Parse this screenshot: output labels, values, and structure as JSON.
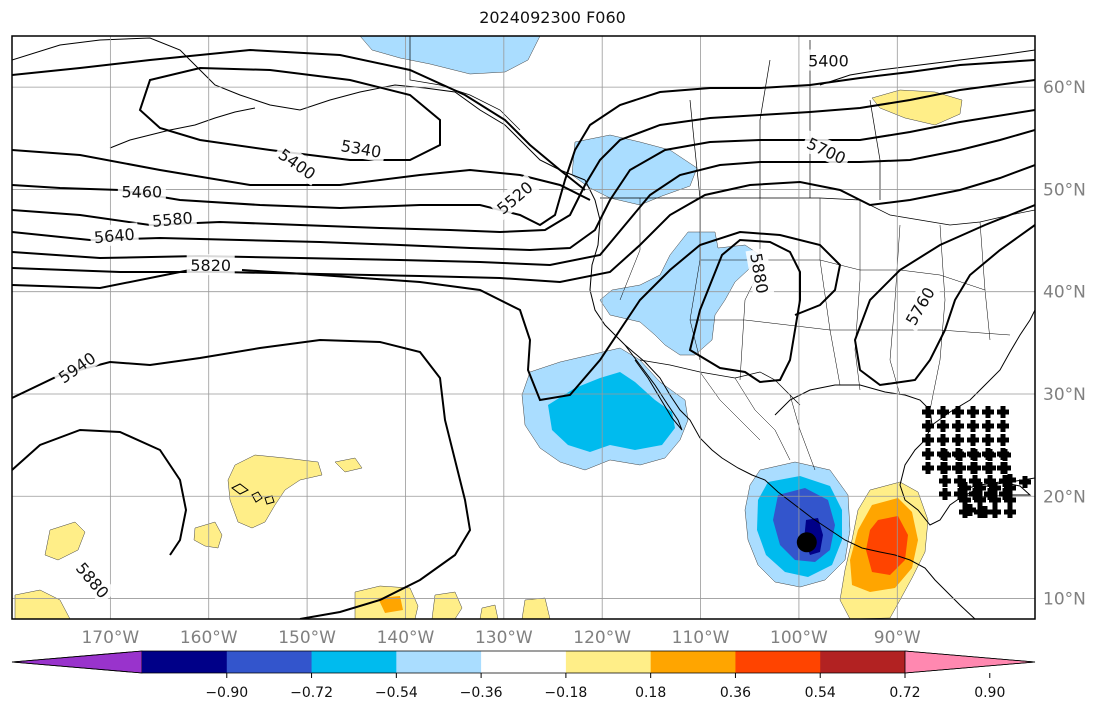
{
  "title": "2024092300 F060",
  "map": {
    "extent": {
      "lon_min": -180,
      "lon_max": -76,
      "lat_min": 8,
      "lat_max": 65
    },
    "gridlines": true
  },
  "axes": {
    "lon_ticks": [
      {
        "value": -170,
        "label": "170°W"
      },
      {
        "value": -160,
        "label": "160°W"
      },
      {
        "value": -150,
        "label": "150°W"
      },
      {
        "value": -140,
        "label": "140°W"
      },
      {
        "value": -130,
        "label": "130°W"
      },
      {
        "value": -120,
        "label": "120°W"
      },
      {
        "value": -110,
        "label": "110°W"
      },
      {
        "value": -100,
        "label": "100°W"
      },
      {
        "value": -90,
        "label": "90°W"
      }
    ],
    "lat_ticks": [
      {
        "value": 60,
        "label": "60°N"
      },
      {
        "value": 50,
        "label": "50°N"
      },
      {
        "value": 40,
        "label": "40°N"
      },
      {
        "value": 30,
        "label": "30°N"
      },
      {
        "value": 20,
        "label": "20°N"
      },
      {
        "value": 10,
        "label": "10°N"
      }
    ]
  },
  "contour_labels": [
    {
      "text": "5400",
      "lon": -151,
      "lat": 52.5,
      "angle": 35
    },
    {
      "text": "5340",
      "lon": -144.5,
      "lat": 54,
      "angle": 10
    },
    {
      "text": "5400",
      "lon": -97,
      "lat": 62.6,
      "angle": 0
    },
    {
      "text": "5460",
      "lon": -166.8,
      "lat": 49.8,
      "angle": 0
    },
    {
      "text": "5520",
      "lon": -128.9,
      "lat": 49.2,
      "angle": -40
    },
    {
      "text": "5580",
      "lon": -163.7,
      "lat": 47.1,
      "angle": -5
    },
    {
      "text": "5640",
      "lon": -169.6,
      "lat": 45.5,
      "angle": -5
    },
    {
      "text": "5700",
      "lon": -97.2,
      "lat": 53.8,
      "angle": 25
    },
    {
      "text": "5760",
      "lon": -87.7,
      "lat": 38.6,
      "angle": -60
    },
    {
      "text": "5820",
      "lon": -159.8,
      "lat": 42.6,
      "angle": 0
    },
    {
      "text": "5880",
      "lon": -104,
      "lat": 41.8,
      "angle": 80
    },
    {
      "text": "5880",
      "lon": -171.8,
      "lat": 11.8,
      "angle": 50
    },
    {
      "text": "5940",
      "lon": -173.4,
      "lat": 32.6,
      "angle": -35
    }
  ],
  "colorbar": {
    "ticks": [
      "−0.90",
      "−0.72",
      "−0.54",
      "−0.36",
      "−0.18",
      "0.18",
      "0.36",
      "0.54",
      "0.72",
      "0.90"
    ],
    "colors": [
      "#9933cc",
      "#000088",
      "#3355cc",
      "#00bbee",
      "#aaddff",
      "#ffffff",
      "#ffee88",
      "#ffa500",
      "#ff4400",
      "#b22222",
      "#ff88b0"
    ]
  },
  "markers": {
    "storm_center": {
      "lon": -99.2,
      "lat": 15.5
    }
  }
}
